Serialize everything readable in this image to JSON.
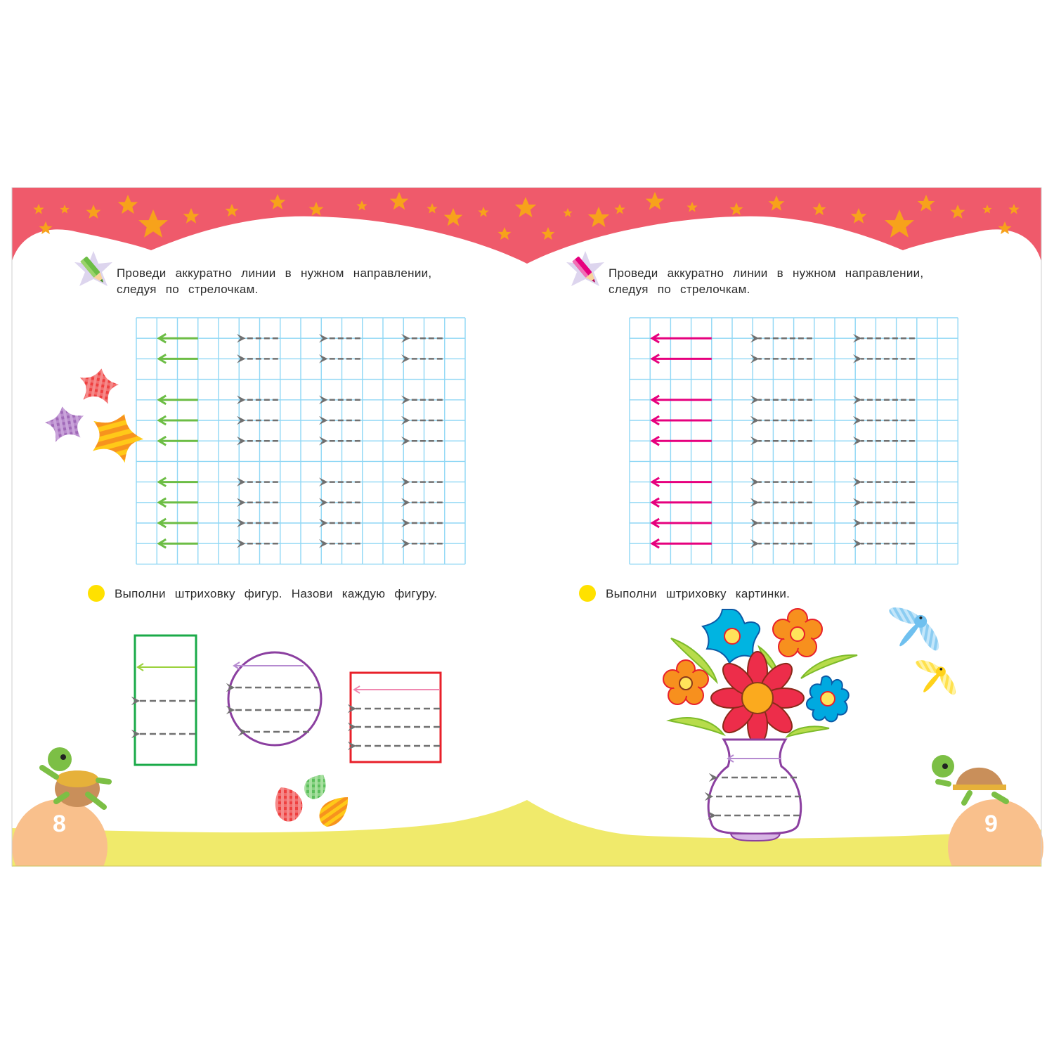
{
  "colors": {
    "banner": "#ef5a6b",
    "stars": "#f7a21b",
    "ground": "#f0ea6b",
    "page_circle": "#f9c08c",
    "grid": "#8fd7f5",
    "guide_gray": "#707070",
    "left_accent": "#6cbd45",
    "right_accent": "#e6007e",
    "bullet": "#ffe100"
  },
  "left_page": {
    "task1_text_line1": "Проведи аккуратно линии в нужном направлении,",
    "task1_text_line2": "следуя по стрелочкам.",
    "task1_icon": "green-pencil-icon",
    "task2_text": "Выполни штриховку фигур. Назови каждую фигуру.",
    "shapes": [
      "rectangle",
      "circle",
      "square"
    ],
    "page_number": "8"
  },
  "right_page": {
    "task1_text_line1": "Проведи аккуратно линии в нужном направлении,",
    "task1_text_line2": "следуя по стрелочкам.",
    "task1_icon": "pink-pencil-icon",
    "task2_text": "Выполни штриховку картинки.",
    "picture": "flowers-in-vase",
    "page_number": "9"
  }
}
